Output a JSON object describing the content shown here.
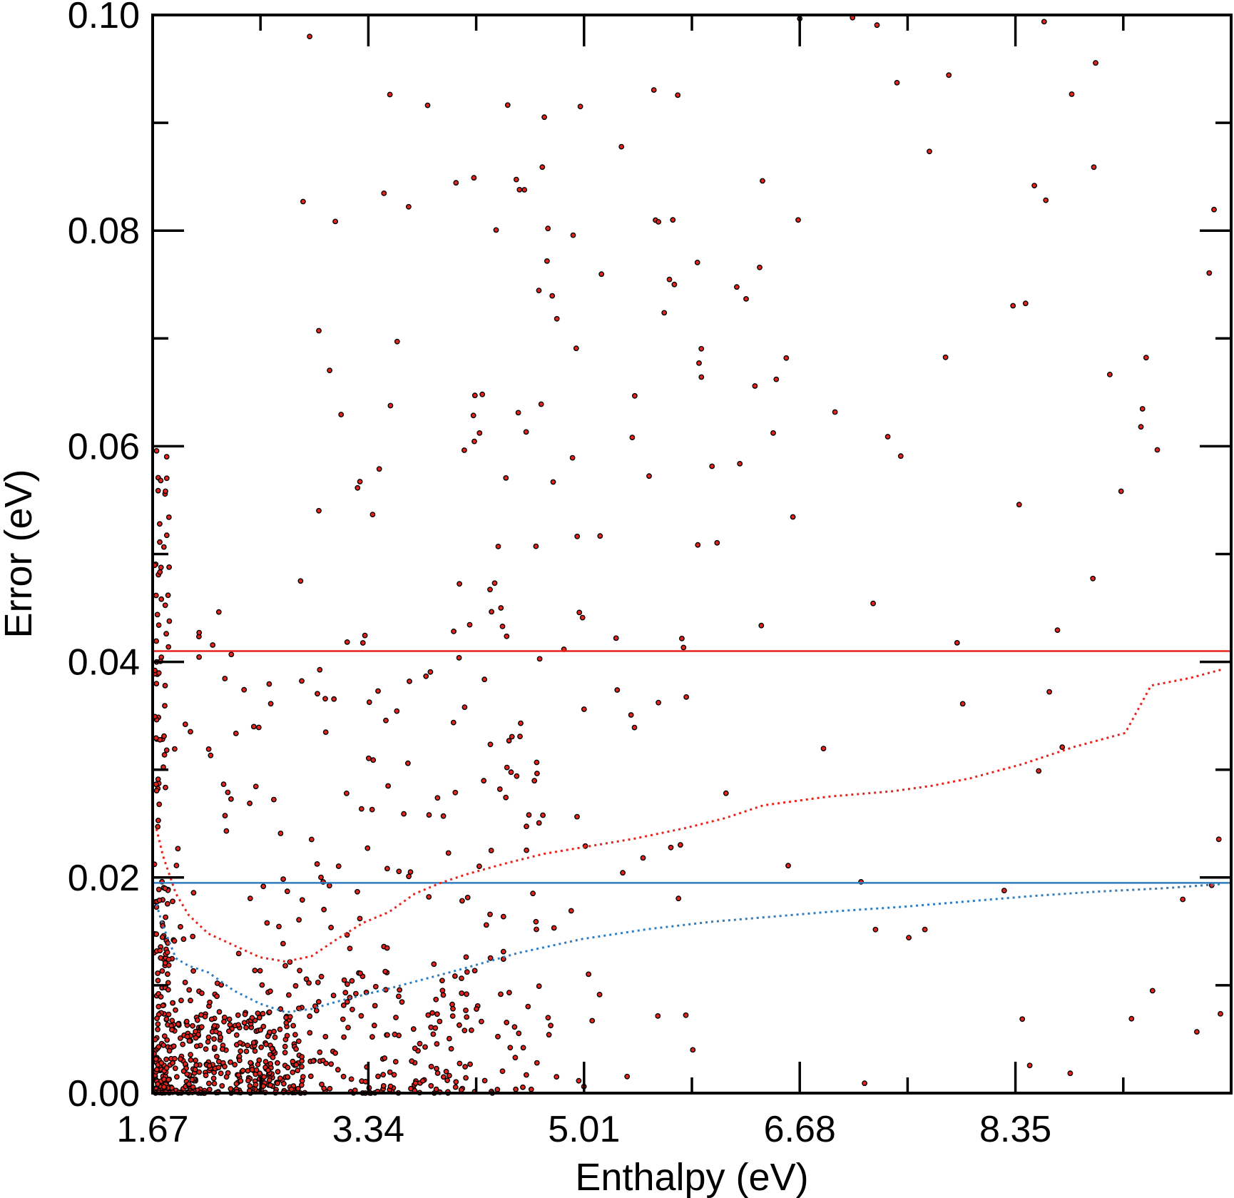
{
  "chart_data": {
    "type": "scatter",
    "xlabel": "Enthalpy (eV)",
    "ylabel": "Error (eV)",
    "xlim": [
      1.67,
      10.02
    ],
    "ylim": [
      0.0,
      0.1
    ],
    "x_ticks": [
      1.67,
      3.34,
      5.01,
      6.68,
      8.35
    ],
    "x_tick_labels": [
      "1.67",
      "3.34",
      "5.01",
      "6.68",
      "8.35"
    ],
    "y_ticks": [
      0.0,
      0.02,
      0.04,
      0.06,
      0.08,
      0.1
    ],
    "y_tick_labels": [
      "0.00",
      "0.02",
      "0.04",
      "0.06",
      "0.08",
      "0.10"
    ],
    "grid": false,
    "point_style": {
      "fill": "#e8231c",
      "stroke": "#000000"
    },
    "reference_lines": [
      {
        "y": 0.041,
        "color": "#e8231c"
      },
      {
        "y": 0.0195,
        "color": "#2f7dc1"
      }
    ],
    "series": [
      {
        "style": "dotted",
        "color": "#e8231c",
        "points": [
          [
            1.7,
            0.0245
          ],
          [
            1.75,
            0.022
          ],
          [
            1.85,
            0.0185
          ],
          [
            1.95,
            0.0165
          ],
          [
            2.1,
            0.0148
          ],
          [
            2.3,
            0.0137
          ],
          [
            2.5,
            0.0126
          ],
          [
            2.7,
            0.0122
          ],
          [
            2.9,
            0.0127
          ],
          [
            3.1,
            0.0143
          ],
          [
            3.3,
            0.0158
          ],
          [
            3.5,
            0.0168
          ],
          [
            3.7,
            0.0185
          ],
          [
            3.9,
            0.0195
          ],
          [
            4.1,
            0.0203
          ],
          [
            4.4,
            0.0213
          ],
          [
            4.7,
            0.0222
          ],
          [
            5.0,
            0.0228
          ],
          [
            5.4,
            0.0236
          ],
          [
            5.8,
            0.0246
          ],
          [
            6.1,
            0.0255
          ],
          [
            6.4,
            0.0267
          ],
          [
            6.9,
            0.0275
          ],
          [
            7.4,
            0.028
          ],
          [
            7.7,
            0.0285
          ],
          [
            8.0,
            0.0292
          ],
          [
            8.4,
            0.0305
          ],
          [
            8.8,
            0.0321
          ],
          [
            9.2,
            0.0334
          ],
          [
            9.4,
            0.0378
          ],
          [
            9.7,
            0.0385
          ],
          [
            9.95,
            0.0393
          ]
        ]
      },
      {
        "style": "dotted",
        "color": "#2f7dc1",
        "points": [
          [
            1.7,
            0.0175
          ],
          [
            1.75,
            0.0155
          ],
          [
            1.85,
            0.0125
          ],
          [
            1.95,
            0.0118
          ],
          [
            2.1,
            0.0112
          ],
          [
            2.3,
            0.0095
          ],
          [
            2.5,
            0.0083
          ],
          [
            2.7,
            0.0075
          ],
          [
            2.9,
            0.0078
          ],
          [
            3.1,
            0.0085
          ],
          [
            3.5,
            0.0097
          ],
          [
            4.0,
            0.0113
          ],
          [
            4.5,
            0.013
          ],
          [
            5.0,
            0.0143
          ],
          [
            5.5,
            0.0152
          ],
          [
            6.0,
            0.0159
          ],
          [
            6.5,
            0.0164
          ],
          [
            7.0,
            0.0169
          ],
          [
            7.5,
            0.0173
          ],
          [
            8.0,
            0.0178
          ],
          [
            8.5,
            0.0183
          ],
          [
            9.0,
            0.0187
          ],
          [
            9.5,
            0.019
          ],
          [
            9.95,
            0.0194
          ]
        ]
      }
    ]
  }
}
